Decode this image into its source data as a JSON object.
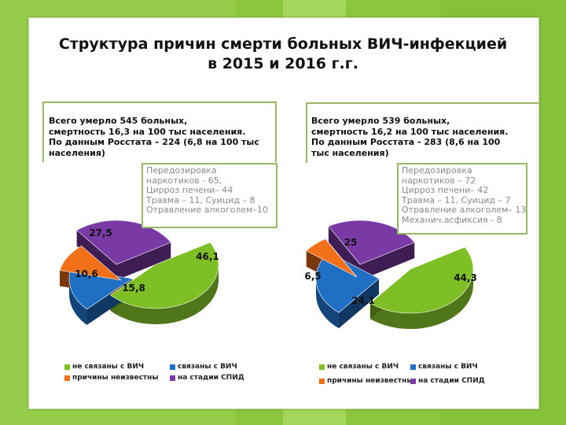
{
  "title_lines": [
    "Структура причин смерти больных ВИЧ-инфекцией",
    "в 2015 и 2016 г.г."
  ],
  "colors": {
    "not_hiv": "#7fbf26",
    "hiv": "#1f6fc4",
    "unknown": "#f27018",
    "aids": "#7a3aa6",
    "frame": "#9ab765",
    "background": "#8cc63f"
  },
  "chart_data": [
    {
      "type": "pie",
      "info_lines": [
        "Всего умерло 545 больных,",
        "смертность 16,3 на 100 тыс населения.",
        "По данным Росстата – 224 (6,8 на 100 тыс",
        "населения)"
      ],
      "causes_lines": [
        "Передозировка",
        "наркотиков - 65,",
        "Цирроз печени– 44",
        "Травма – 11, Суицид – 8",
        "Отравление алкоголем–10"
      ],
      "slices": [
        {
          "label": "не связаны с ВИЧ",
          "value": 46.1,
          "value_label": "46,1",
          "color": "#7fbf26"
        },
        {
          "label": "связаны с ВИЧ",
          "value": 15.8,
          "value_label": "15,8",
          "color": "#1f6fc4"
        },
        {
          "label": "причины неизвестны",
          "value": 10.6,
          "value_label": "10,6",
          "color": "#f27018"
        },
        {
          "label": "на стадии СПИД",
          "value": 27.5,
          "value_label": "27,5",
          "color": "#7a3aa6"
        }
      ]
    },
    {
      "type": "pie",
      "info_lines": [
        "Всего умерло 539 больных,",
        "смертность 16,2 на 100 тыс населения.",
        "По данным Росстата - 283 (8,6 на 100",
        "тыс населения)"
      ],
      "causes_lines": [
        "Передозировка",
        "наркотиков – 72",
        "Цирроз печени– 42",
        "Травма – 11, Суицид – 7",
        "Отравление алкоголем– 13",
        "Механич.асфиксия - 8"
      ],
      "slices": [
        {
          "label": "не связаны с ВИЧ",
          "value": 44.3,
          "value_label": "44,3",
          "color": "#7fbf26"
        },
        {
          "label": "связаны с ВИЧ",
          "value": 24.1,
          "value_label": "24,1",
          "color": "#1f6fc4"
        },
        {
          "label": "причины неизвестны",
          "value": 6.5,
          "value_label": "6,5",
          "color": "#f27018"
        },
        {
          "label": "на стадии СПИД",
          "value": 25,
          "value_label": "25",
          "color": "#7a3aa6"
        }
      ]
    }
  ]
}
